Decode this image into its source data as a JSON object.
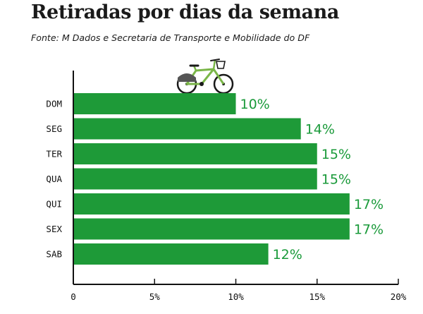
{
  "header": {
    "title": "Retiradas por dias da semana",
    "subtitle": "Fonte: M Dados e Secretaria de Transporte e Mobilidade do DF"
  },
  "decoration": {
    "icon": "bicycle-icon"
  },
  "colors": {
    "bar": "#1e9a38",
    "value_label": "#1a9a3a",
    "bike": "#7ab648"
  },
  "chart_data": {
    "type": "bar",
    "orientation": "horizontal",
    "title": "Retiradas por dias da semana",
    "subtitle": "Fonte: M Dados e Secretaria de Transporte e Mobilidade do DF",
    "categories": [
      "DOM",
      "SEG",
      "TER",
      "QUA",
      "QUI",
      "SEX",
      "SAB"
    ],
    "values": [
      10,
      14,
      15,
      15,
      17,
      17,
      12
    ],
    "data_labels": [
      "10%",
      "14%",
      "15%",
      "15%",
      "17%",
      "17%",
      "12%"
    ],
    "xlim": [
      0,
      20
    ],
    "x_ticks": [
      0,
      5,
      10,
      15,
      20
    ],
    "x_tick_labels": [
      "0",
      "5%",
      "10%",
      "15%",
      "20%"
    ],
    "grid": false,
    "legend": "none"
  }
}
